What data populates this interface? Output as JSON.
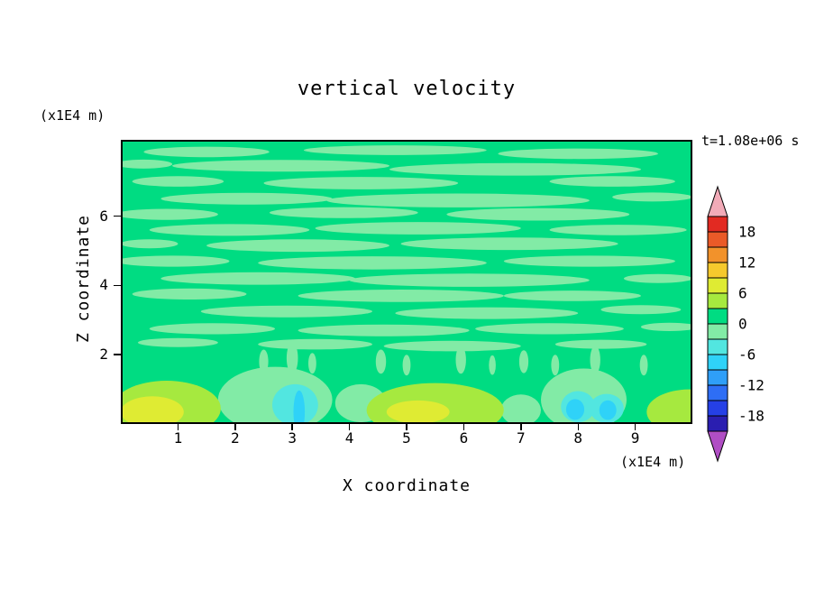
{
  "title": "vertical velocity",
  "annotations": {
    "time_label": "t=1.08e+06 s",
    "y_axis_unit": "(x1E4 m)",
    "x_axis_unit": "(x1E4 m)"
  },
  "chart_data": {
    "type": "heatmap",
    "title": "vertical velocity",
    "xlabel": "X coordinate",
    "ylabel": "Z coordinate",
    "x_units": "(x1E4 m)",
    "z_units": "(x1E4 m)",
    "time_annotation": "t=1.08e+06 s",
    "x_range": [
      0,
      10
    ],
    "z_range": [
      0,
      8.2
    ],
    "x_ticks": [
      1,
      2,
      3,
      4,
      5,
      6,
      7,
      8,
      9
    ],
    "z_ticks": [
      2,
      4,
      6
    ],
    "contour_interval": 3,
    "labeled_levels": [
      18,
      12,
      6,
      0,
      -6,
      -12,
      -18
    ],
    "base_value": 1,
    "palette": {
      "range": [
        -21,
        21
      ],
      "colors": [
        "#2a1eb0",
        "#2540e6",
        "#2e6ef5",
        "#2f9ff8",
        "#2fd2f8",
        "#52e6e0",
        "#82eba6",
        "#00dc82",
        "#a6e93f",
        "#dfeb33",
        "#f6c92d",
        "#f2922b",
        "#ea5a28",
        "#e22a22"
      ],
      "under": "#b04ec4",
      "over": "#f2abb8"
    },
    "features": [
      {
        "x": 1.5,
        "z": 7.85,
        "rx": 1.1,
        "rz": 0.15,
        "v": -1
      },
      {
        "x": 4.8,
        "z": 7.9,
        "rx": 1.6,
        "rz": 0.14,
        "v": -1
      },
      {
        "x": 8.0,
        "z": 7.8,
        "rx": 1.4,
        "rz": 0.15,
        "v": -1
      },
      {
        "x": 0.4,
        "z": 7.5,
        "rx": 0.5,
        "rz": 0.13,
        "v": -1
      },
      {
        "x": 2.8,
        "z": 7.45,
        "rx": 1.9,
        "rz": 0.17,
        "v": -1
      },
      {
        "x": 6.9,
        "z": 7.35,
        "rx": 2.2,
        "rz": 0.18,
        "v": -1
      },
      {
        "x": 1.0,
        "z": 7.0,
        "rx": 0.8,
        "rz": 0.15,
        "v": -1
      },
      {
        "x": 4.2,
        "z": 6.95,
        "rx": 1.7,
        "rz": 0.18,
        "v": -1
      },
      {
        "x": 8.6,
        "z": 7.0,
        "rx": 1.1,
        "rz": 0.15,
        "v": -1
      },
      {
        "x": 2.2,
        "z": 6.5,
        "rx": 1.5,
        "rz": 0.17,
        "v": -1
      },
      {
        "x": 5.9,
        "z": 6.45,
        "rx": 2.3,
        "rz": 0.2,
        "v": -1
      },
      {
        "x": 9.3,
        "z": 6.55,
        "rx": 0.7,
        "rz": 0.13,
        "v": -1
      },
      {
        "x": 0.8,
        "z": 6.05,
        "rx": 0.9,
        "rz": 0.16,
        "v": -1
      },
      {
        "x": 3.9,
        "z": 6.1,
        "rx": 1.3,
        "rz": 0.16,
        "v": -1
      },
      {
        "x": 7.3,
        "z": 6.05,
        "rx": 1.6,
        "rz": 0.18,
        "v": -1
      },
      {
        "x": 1.9,
        "z": 5.6,
        "rx": 1.4,
        "rz": 0.17,
        "v": -1
      },
      {
        "x": 5.2,
        "z": 5.65,
        "rx": 1.8,
        "rz": 0.18,
        "v": -1
      },
      {
        "x": 8.7,
        "z": 5.6,
        "rx": 1.2,
        "rz": 0.15,
        "v": -1
      },
      {
        "x": 0.5,
        "z": 5.2,
        "rx": 0.5,
        "rz": 0.13,
        "v": -1
      },
      {
        "x": 3.1,
        "z": 5.15,
        "rx": 1.6,
        "rz": 0.18,
        "v": -1
      },
      {
        "x": 6.8,
        "z": 5.2,
        "rx": 1.9,
        "rz": 0.18,
        "v": -1
      },
      {
        "x": 0.9,
        "z": 4.7,
        "rx": 1.0,
        "rz": 0.16,
        "v": -1
      },
      {
        "x": 4.4,
        "z": 4.65,
        "rx": 2.0,
        "rz": 0.19,
        "v": -1
      },
      {
        "x": 8.2,
        "z": 4.7,
        "rx": 1.5,
        "rz": 0.16,
        "v": -1
      },
      {
        "x": 2.4,
        "z": 4.2,
        "rx": 1.7,
        "rz": 0.18,
        "v": -1
      },
      {
        "x": 6.1,
        "z": 4.15,
        "rx": 2.1,
        "rz": 0.19,
        "v": -1
      },
      {
        "x": 9.4,
        "z": 4.2,
        "rx": 0.6,
        "rz": 0.13,
        "v": -1
      },
      {
        "x": 1.2,
        "z": 3.75,
        "rx": 1.0,
        "rz": 0.16,
        "v": -1
      },
      {
        "x": 4.9,
        "z": 3.7,
        "rx": 1.8,
        "rz": 0.18,
        "v": -1
      },
      {
        "x": 7.9,
        "z": 3.7,
        "rx": 1.2,
        "rz": 0.15,
        "v": -1
      },
      {
        "x": 2.9,
        "z": 3.25,
        "rx": 1.5,
        "rz": 0.17,
        "v": -1
      },
      {
        "x": 6.4,
        "z": 3.2,
        "rx": 1.6,
        "rz": 0.17,
        "v": -1
      },
      {
        "x": 9.1,
        "z": 3.3,
        "rx": 0.7,
        "rz": 0.13,
        "v": -1
      },
      {
        "x": 1.6,
        "z": 2.75,
        "rx": 1.1,
        "rz": 0.16,
        "v": -1
      },
      {
        "x": 4.6,
        "z": 2.7,
        "rx": 1.5,
        "rz": 0.17,
        "v": -1
      },
      {
        "x": 7.5,
        "z": 2.75,
        "rx": 1.3,
        "rz": 0.16,
        "v": -1
      },
      {
        "x": 9.6,
        "z": 2.8,
        "rx": 0.5,
        "rz": 0.12,
        "v": -1
      },
      {
        "x": 1.0,
        "z": 2.35,
        "rx": 0.7,
        "rz": 0.13,
        "v": -1
      },
      {
        "x": 3.4,
        "z": 2.3,
        "rx": 1.0,
        "rz": 0.15,
        "v": -1
      },
      {
        "x": 5.8,
        "z": 2.25,
        "rx": 1.2,
        "rz": 0.15,
        "v": -1
      },
      {
        "x": 8.4,
        "z": 2.3,
        "rx": 0.8,
        "rz": 0.13,
        "v": -1
      },
      {
        "x": 2.5,
        "z": 1.8,
        "rx": 0.08,
        "rz": 0.35,
        "v": -1
      },
      {
        "x": 3.0,
        "z": 1.9,
        "rx": 0.1,
        "rz": 0.45,
        "v": -1
      },
      {
        "x": 3.35,
        "z": 1.75,
        "rx": 0.07,
        "rz": 0.3,
        "v": -1
      },
      {
        "x": 4.55,
        "z": 1.8,
        "rx": 0.09,
        "rz": 0.35,
        "v": -1
      },
      {
        "x": 5.0,
        "z": 1.7,
        "rx": 0.07,
        "rz": 0.3,
        "v": -1
      },
      {
        "x": 5.95,
        "z": 1.85,
        "rx": 0.09,
        "rz": 0.4,
        "v": -1
      },
      {
        "x": 6.5,
        "z": 1.7,
        "rx": 0.06,
        "rz": 0.28,
        "v": -1
      },
      {
        "x": 7.05,
        "z": 1.8,
        "rx": 0.08,
        "rz": 0.33,
        "v": -1
      },
      {
        "x": 7.6,
        "z": 1.7,
        "rx": 0.07,
        "rz": 0.3,
        "v": -1
      },
      {
        "x": 8.3,
        "z": 1.85,
        "rx": 0.09,
        "rz": 0.4,
        "v": -1
      },
      {
        "x": 9.15,
        "z": 1.7,
        "rx": 0.07,
        "rz": 0.3,
        "v": -1
      },
      {
        "x": 2.7,
        "z": 0.7,
        "rx": 1.0,
        "rz": 0.95,
        "v": -1
      },
      {
        "x": 4.2,
        "z": 0.6,
        "rx": 0.45,
        "rz": 0.55,
        "v": -1
      },
      {
        "x": 7.0,
        "z": 0.4,
        "rx": 0.35,
        "rz": 0.45,
        "v": -1
      },
      {
        "x": 8.1,
        "z": 0.7,
        "rx": 0.75,
        "rz": 0.9,
        "v": -1
      },
      {
        "x": 0.8,
        "z": 0.45,
        "rx": 0.95,
        "rz": 0.8,
        "v": 4
      },
      {
        "x": 5.5,
        "z": 0.4,
        "rx": 1.2,
        "rz": 0.78,
        "v": 4
      },
      {
        "x": 9.95,
        "z": 0.35,
        "rx": 0.75,
        "rz": 0.65,
        "v": 4
      },
      {
        "x": 0.55,
        "z": 0.35,
        "rx": 0.55,
        "rz": 0.45,
        "v": 7
      },
      {
        "x": 5.2,
        "z": 0.35,
        "rx": 0.55,
        "rz": 0.33,
        "v": 7
      },
      {
        "x": 3.05,
        "z": 0.55,
        "rx": 0.4,
        "rz": 0.6,
        "v": -5
      },
      {
        "x": 3.12,
        "z": 0.35,
        "rx": 0.1,
        "rz": 0.62,
        "v": -8
      },
      {
        "x": 8.0,
        "z": 0.5,
        "rx": 0.3,
        "rz": 0.45,
        "v": -5
      },
      {
        "x": 7.95,
        "z": 0.42,
        "rx": 0.16,
        "rz": 0.3,
        "v": -8
      },
      {
        "x": 8.5,
        "z": 0.45,
        "rx": 0.3,
        "rz": 0.42,
        "v": -5
      },
      {
        "x": 8.52,
        "z": 0.4,
        "rx": 0.15,
        "rz": 0.28,
        "v": -8
      }
    ]
  }
}
